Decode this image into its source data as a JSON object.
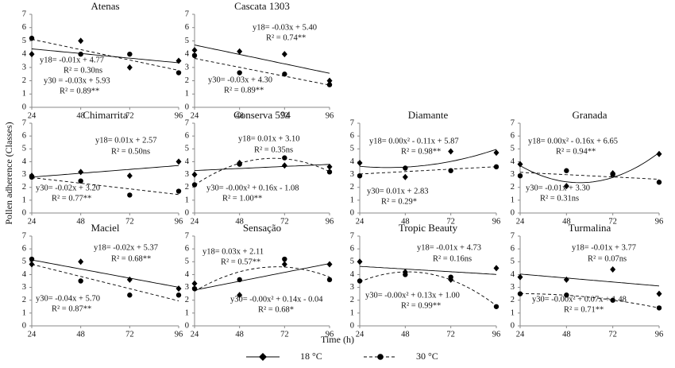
{
  "axis_labels": {
    "x": "Time (h)",
    "y": "Pollen adherence (Classes)"
  },
  "chart_data": [
    {
      "type": "scatter",
      "title": "Atenas",
      "x": [
        24,
        48,
        72,
        96
      ],
      "xlim": [
        24,
        96
      ],
      "xticks": [
        24,
        48,
        72,
        96
      ],
      "ylim": [
        0,
        7
      ],
      "yticks": [
        0,
        1,
        2,
        3,
        4,
        5,
        6,
        7
      ],
      "series": [
        {
          "name": "18 °C",
          "marker": "diamond",
          "line": "solid",
          "fit": "linear",
          "color": "#000000",
          "values": [
            4.0,
            5.0,
            3.0,
            3.5
          ]
        },
        {
          "name": "30 °C",
          "marker": "circle",
          "line": "dashed",
          "fit": "linear",
          "color": "#000000",
          "values": [
            5.2,
            4.0,
            4.0,
            2.6
          ]
        }
      ],
      "annotations": [
        "y18= -0.01x + 4.77",
        "R² = 0.30ns",
        "y30 = -0.03x + 5.93",
        "R² = 0.89**"
      ]
    },
    {
      "type": "scatter",
      "title": "Cascata 1303",
      "x": [
        24,
        48,
        72,
        96
      ],
      "xlim": [
        24,
        96
      ],
      "xticks": [
        24,
        48,
        72,
        96
      ],
      "ylim": [
        0,
        7
      ],
      "yticks": [
        0,
        1,
        2,
        3,
        4,
        5,
        6,
        7
      ],
      "series": [
        {
          "name": "18 °C",
          "marker": "diamond",
          "line": "solid",
          "fit": "linear",
          "color": "#000000",
          "values": [
            4.3,
            4.2,
            4.0,
            2.0
          ]
        },
        {
          "name": "30 °C",
          "marker": "circle",
          "line": "dashed",
          "fit": "linear",
          "color": "#000000",
          "values": [
            3.9,
            2.6,
            2.5,
            1.7
          ]
        }
      ],
      "annotations": [
        "y18= -0.03x + 5.40",
        "R² = 0.74**",
        "y30= -0.03x + 4.30",
        "R² = 0.89**"
      ]
    },
    {
      "type": "scatter",
      "title": "Chimarrita",
      "x": [
        24,
        48,
        72,
        96
      ],
      "xlim": [
        24,
        96
      ],
      "xticks": [
        24,
        48,
        72,
        96
      ],
      "ylim": [
        0,
        7
      ],
      "yticks": [
        0,
        1,
        2,
        3,
        4,
        5,
        6,
        7
      ],
      "series": [
        {
          "name": "18 °C",
          "marker": "diamond",
          "line": "solid",
          "fit": "linear",
          "color": "#000000",
          "values": [
            2.9,
            3.2,
            2.9,
            4.0
          ]
        },
        {
          "name": "30 °C",
          "marker": "circle",
          "line": "dashed",
          "fit": "linear",
          "color": "#000000",
          "values": [
            2.8,
            2.5,
            1.4,
            1.7
          ]
        }
      ],
      "annotations": [
        "y18= 0.01x + 2.57",
        "R² = 0.50ns",
        "y30= -0.02x + 3.20",
        "R² = 0.77**"
      ]
    },
    {
      "type": "scatter",
      "title": "Conserva 594",
      "x": [
        24,
        48,
        72,
        96
      ],
      "xlim": [
        24,
        96
      ],
      "xticks": [
        24,
        48,
        72,
        96
      ],
      "ylim": [
        0,
        7
      ],
      "yticks": [
        0,
        1,
        2,
        3,
        4,
        5,
        6,
        7
      ],
      "series": [
        {
          "name": "18 °C",
          "marker": "diamond",
          "line": "solid",
          "fit": "linear",
          "color": "#000000",
          "values": [
            3.0,
            3.9,
            3.7,
            3.6
          ]
        },
        {
          "name": "30 °C",
          "marker": "circle",
          "line": "dashed",
          "fit": "quadratic",
          "color": "#000000",
          "values": [
            2.2,
            3.8,
            4.3,
            3.2
          ]
        }
      ],
      "annotations": [
        "y18= 0.01x + 3.10",
        "R² = 0.35ns",
        "y30= -0.00x² + 0.16x - 1.08",
        "R² = 1.00**"
      ]
    },
    {
      "type": "scatter",
      "title": "Diamante",
      "x": [
        24,
        48,
        72,
        96
      ],
      "xlim": [
        24,
        96
      ],
      "xticks": [
        24,
        48,
        72,
        96
      ],
      "ylim": [
        0,
        7
      ],
      "yticks": [
        0,
        1,
        2,
        3,
        4,
        5,
        6,
        7
      ],
      "series": [
        {
          "name": "18 °C",
          "marker": "diamond",
          "line": "solid",
          "fit": "quadratic",
          "color": "#000000",
          "values": [
            3.9,
            2.8,
            4.8,
            4.7
          ]
        },
        {
          "name": "30 °C",
          "marker": "circle",
          "line": "dashed",
          "fit": "linear",
          "color": "#000000",
          "values": [
            2.9,
            3.5,
            3.3,
            3.6
          ]
        }
      ],
      "annotations": [
        "y18= 0.00x² - 0.11x + 5.87",
        "R² = 0.98**",
        "y30= 0.01x + 2.83",
        "R² = 0.29*"
      ]
    },
    {
      "type": "scatter",
      "title": "Granada",
      "x": [
        24,
        48,
        72,
        96
      ],
      "xlim": [
        24,
        96
      ],
      "xticks": [
        24,
        48,
        72,
        96
      ],
      "ylim": [
        0,
        7
      ],
      "yticks": [
        0,
        1,
        2,
        3,
        4,
        5,
        6,
        7
      ],
      "series": [
        {
          "name": "18 °C",
          "marker": "diamond",
          "line": "solid",
          "fit": "quadratic",
          "color": "#000000",
          "values": [
            3.8,
            2.1,
            3.1,
            4.6
          ]
        },
        {
          "name": "30 °C",
          "marker": "circle",
          "line": "dashed",
          "fit": "linear",
          "color": "#000000",
          "values": [
            2.9,
            3.3,
            3.0,
            2.4
          ]
        }
      ],
      "annotations": [
        "y18= 0.00x² - 0.16x + 6.65",
        "R² = 0.94**",
        "y30= -0.01x + 3.30",
        "R² = 0.31ns"
      ]
    },
    {
      "type": "scatter",
      "title": "Maciel",
      "x": [
        24,
        48,
        72,
        96
      ],
      "xlim": [
        24,
        96
      ],
      "xticks": [
        24,
        48,
        72,
        96
      ],
      "ylim": [
        0,
        7
      ],
      "yticks": [
        0,
        1,
        2,
        3,
        4,
        5,
        6,
        7
      ],
      "series": [
        {
          "name": "18 °C",
          "marker": "diamond",
          "line": "solid",
          "fit": "linear",
          "color": "#000000",
          "values": [
            4.8,
            5.0,
            3.6,
            2.9
          ]
        },
        {
          "name": "30 °C",
          "marker": "circle",
          "line": "dashed",
          "fit": "linear",
          "color": "#000000",
          "values": [
            5.2,
            3.5,
            2.4,
            2.4
          ]
        }
      ],
      "annotations": [
        "y18= -0.02x + 5.37",
        "R² = 0.68**",
        "y30= -0.04x + 5.70",
        "R² = 0.87**"
      ]
    },
    {
      "type": "scatter",
      "title": "Sensação",
      "x": [
        24,
        48,
        72,
        96
      ],
      "xlim": [
        24,
        96
      ],
      "xticks": [
        24,
        48,
        72,
        96
      ],
      "ylim": [
        0,
        7
      ],
      "yticks": [
        0,
        1,
        2,
        3,
        4,
        5,
        6,
        7
      ],
      "series": [
        {
          "name": "18 °C",
          "marker": "diamond",
          "line": "solid",
          "fit": "linear",
          "color": "#000000",
          "values": [
            3.3,
            2.4,
            4.8,
            4.8
          ]
        },
        {
          "name": "30 °C",
          "marker": "circle",
          "line": "dashed",
          "fit": "quadratic",
          "color": "#000000",
          "values": [
            2.9,
            3.6,
            5.2,
            3.6
          ]
        }
      ],
      "annotations": [
        "y18= 0.03x + 2.11",
        "R² = 0.57**",
        "y30= -0.00x² + 0.14x - 0.04",
        "R² = 0.68*"
      ]
    },
    {
      "type": "scatter",
      "title": "Tropic Beauty",
      "x": [
        24,
        48,
        72,
        96
      ],
      "xlim": [
        24,
        96
      ],
      "xticks": [
        24,
        48,
        72,
        96
      ],
      "ylim": [
        0,
        7
      ],
      "yticks": [
        0,
        1,
        2,
        3,
        4,
        5,
        6,
        7
      ],
      "series": [
        {
          "name": "18 °C",
          "marker": "diamond",
          "line": "solid",
          "fit": "linear",
          "color": "#000000",
          "values": [
            5.0,
            4.2,
            3.6,
            4.5
          ]
        },
        {
          "name": "30 °C",
          "marker": "circle",
          "line": "dashed",
          "fit": "quadratic",
          "color": "#000000",
          "values": [
            3.5,
            4.0,
            3.8,
            1.5
          ]
        }
      ],
      "annotations": [
        "y18= -0.01x + 4.73",
        "R² = 0.16ns",
        "y30= -0.00x² + 0.13x + 1.00",
        "R² = 0.99**"
      ]
    },
    {
      "type": "scatter",
      "title": "Turmalina",
      "x": [
        24,
        48,
        72,
        96
      ],
      "xlim": [
        24,
        96
      ],
      "xticks": [
        24,
        48,
        72,
        96
      ],
      "ylim": [
        0,
        7
      ],
      "yticks": [
        0,
        1,
        2,
        3,
        4,
        5,
        6,
        7
      ],
      "series": [
        {
          "name": "18 °C",
          "marker": "diamond",
          "line": "solid",
          "fit": "linear",
          "color": "#000000",
          "values": [
            3.8,
            3.6,
            4.4,
            2.5
          ]
        },
        {
          "name": "30 °C",
          "marker": "circle",
          "line": "dashed",
          "fit": "quadratic",
          "color": "#000000",
          "values": [
            2.5,
            2.4,
            2.0,
            1.4
          ]
        }
      ],
      "annotations": [
        "y18= -0.01x + 3.77",
        "R² = 0.07ns",
        "y30= -0.00x² + 0.07x + 1.48",
        "R² = 0.71**"
      ]
    }
  ]
}
